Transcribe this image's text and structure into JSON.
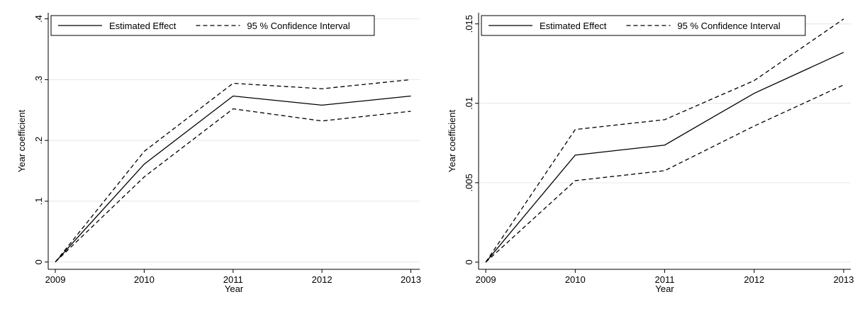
{
  "chart_data": [
    {
      "type": "line",
      "x_label": "Year",
      "y_label": "Year coefficient",
      "x": [
        2009,
        2010,
        2011,
        2012,
        2013
      ],
      "xlim": [
        2008.92,
        2013.1
      ],
      "xticks": [
        2009,
        2010,
        2011,
        2012,
        2013
      ],
      "ylim": [
        -0.012,
        0.41
      ],
      "yticks": [
        0,
        {
          "value": 0.1,
          "label": ".1"
        },
        {
          "value": 0.2,
          "label": ".2"
        },
        {
          "value": 0.3,
          "label": ".3"
        },
        {
          "value": 0.4,
          "label": ".4"
        }
      ],
      "grid": true,
      "legend": "top",
      "series": [
        {
          "name": "Estimated Effect",
          "color": "#000000",
          "values": [
            0,
            0.161,
            0.273,
            0.258,
            0.273
          ]
        },
        {
          "name": "95 % Confidence Interval",
          "color": "#000000",
          "lower": [
            0,
            0.14,
            0.252,
            0.232,
            0.248
          ],
          "upper": [
            0,
            0.182,
            0.294,
            0.285,
            0.3
          ]
        }
      ]
    },
    {
      "type": "line",
      "x_label": "Year",
      "y_label": "Year coefficient",
      "x": [
        2009,
        2010,
        2011,
        2012,
        2013
      ],
      "xlim": [
        2008.92,
        2013.08
      ],
      "xticks": [
        2009,
        2010,
        2011,
        2012,
        2013
      ],
      "ylim": [
        -0.00045,
        0.0157
      ],
      "yticks": [
        0,
        {
          "value": 0.005,
          "label": ".005"
        },
        {
          "value": 0.01,
          "label": ".01"
        },
        {
          "value": 0.015,
          "label": ".015"
        }
      ],
      "grid": true,
      "legend": "top",
      "series": [
        {
          "name": "Estimated Effect",
          "color": "#000000",
          "values": [
            0,
            0.00674,
            0.00737,
            0.01063,
            0.01321
          ]
        },
        {
          "name": "95 % Confidence Interval",
          "color": "#000000",
          "lower": [
            0,
            0.00513,
            0.00576,
            0.00857,
            0.01116
          ],
          "upper": [
            0,
            0.00835,
            0.00897,
            0.01143,
            0.01531
          ]
        }
      ]
    }
  ]
}
